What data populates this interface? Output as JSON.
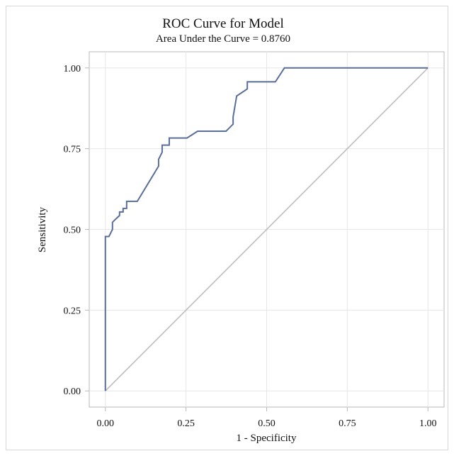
{
  "chart_data": {
    "type": "line",
    "title": "ROC Curve for Model",
    "subtitle": "Area Under the Curve = 0.8760",
    "xlabel": "1 - Specificity",
    "ylabel": "Sensitivity",
    "xlim": [
      -0.05,
      1.05
    ],
    "ylim": [
      -0.05,
      1.05
    ],
    "xticks": [
      "0.00",
      "0.25",
      "0.50",
      "0.75",
      "1.00"
    ],
    "yticks": [
      "0.00",
      "0.25",
      "0.50",
      "0.75",
      "1.00"
    ],
    "grid": true,
    "colors": {
      "roc": "#5a6e99",
      "reference": "#bdbdbd",
      "grid": "#e6e6e6",
      "frame": "#b8b8b8"
    },
    "series": [
      {
        "points": [
          [
            0.0,
            0.0
          ],
          [
            0.0,
            0.478
          ],
          [
            0.011,
            0.478
          ],
          [
            0.022,
            0.5
          ],
          [
            0.022,
            0.522
          ],
          [
            0.033,
            0.533
          ],
          [
            0.044,
            0.543
          ],
          [
            0.044,
            0.554
          ],
          [
            0.055,
            0.554
          ],
          [
            0.055,
            0.565
          ],
          [
            0.066,
            0.565
          ],
          [
            0.066,
            0.587
          ],
          [
            0.099,
            0.587
          ],
          [
            0.165,
            0.696
          ],
          [
            0.165,
            0.717
          ],
          [
            0.176,
            0.739
          ],
          [
            0.176,
            0.761
          ],
          [
            0.198,
            0.761
          ],
          [
            0.198,
            0.783
          ],
          [
            0.253,
            0.783
          ],
          [
            0.286,
            0.804
          ],
          [
            0.374,
            0.804
          ],
          [
            0.396,
            0.826
          ],
          [
            0.396,
            0.848
          ],
          [
            0.407,
            0.913
          ],
          [
            0.44,
            0.935
          ],
          [
            0.44,
            0.957
          ],
          [
            0.527,
            0.957
          ],
          [
            0.555,
            1.0
          ],
          [
            1.0,
            1.0
          ]
        ]
      },
      {
        "points": [
          [
            0,
            0
          ],
          [
            1,
            1
          ]
        ]
      }
    ]
  }
}
